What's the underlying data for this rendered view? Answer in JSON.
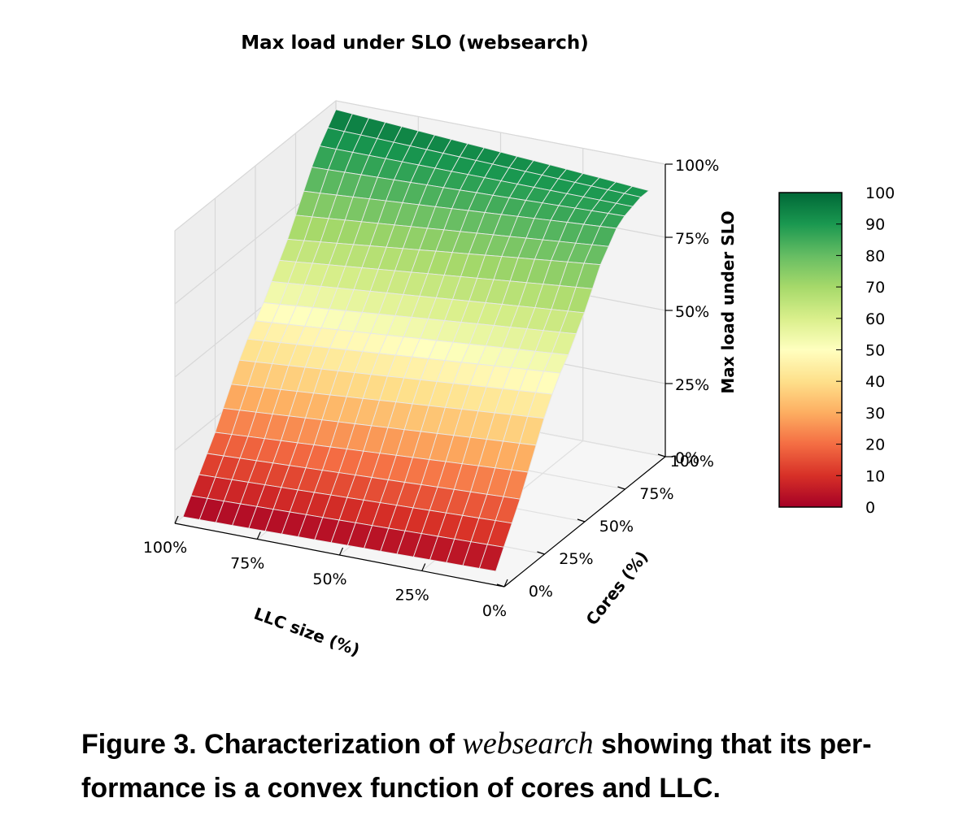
{
  "chart_data": {
    "type": "surface3d",
    "title": "Max load under SLO (websearch)",
    "xlabel": "LLC size (%)",
    "ylabel": "Cores (%)",
    "zlabel": "Max load under SLO",
    "x_ticks": [
      "0%",
      "25%",
      "50%",
      "75%",
      "100%"
    ],
    "y_ticks": [
      "0%",
      "25%",
      "50%",
      "75%",
      "100%"
    ],
    "z_ticks": [
      "0%",
      "25%",
      "50%",
      "75%",
      "100%"
    ],
    "xlim": [
      0,
      100
    ],
    "ylim": [
      0,
      100
    ],
    "zlim": [
      0,
      100
    ],
    "colormap": "RdYlGn",
    "colorbar_ticks": [
      "0",
      "10",
      "20",
      "30",
      "40",
      "50",
      "60",
      "70",
      "80",
      "90",
      "100"
    ],
    "grid": true,
    "cores_pct": [
      5,
      10,
      15,
      20,
      25,
      30,
      35,
      40,
      45,
      50,
      55,
      60,
      65,
      70,
      75,
      80,
      85,
      90,
      95,
      100
    ],
    "llc_pct": [
      5,
      10,
      15,
      20,
      25,
      30,
      35,
      40,
      45,
      50,
      55,
      60,
      65,
      70,
      75,
      80,
      85,
      90,
      95,
      100
    ],
    "load_vs_cores_at_low_llc": [
      2,
      8,
      14,
      20,
      27,
      34,
      41,
      47,
      52,
      56,
      61,
      66,
      72,
      78,
      82,
      86,
      88,
      89,
      90,
      90
    ],
    "load_vs_cores_at_full_llc": [
      0,
      5,
      10,
      15,
      20,
      26,
      32,
      38,
      43,
      47,
      51,
      56,
      61,
      66,
      72,
      78,
      84,
      89,
      93,
      97
    ],
    "zmax_profile_vs_llc": [
      95,
      96,
      97,
      98,
      98,
      99,
      99,
      99,
      99,
      100,
      100,
      99,
      100,
      100,
      100,
      100,
      100,
      100,
      99,
      100
    ]
  },
  "caption": {
    "prefix": "Figure 3. Characterization of ",
    "italic": "websearch",
    "suffix": " showing that its per- formance is a convex function of cores and LLC."
  }
}
